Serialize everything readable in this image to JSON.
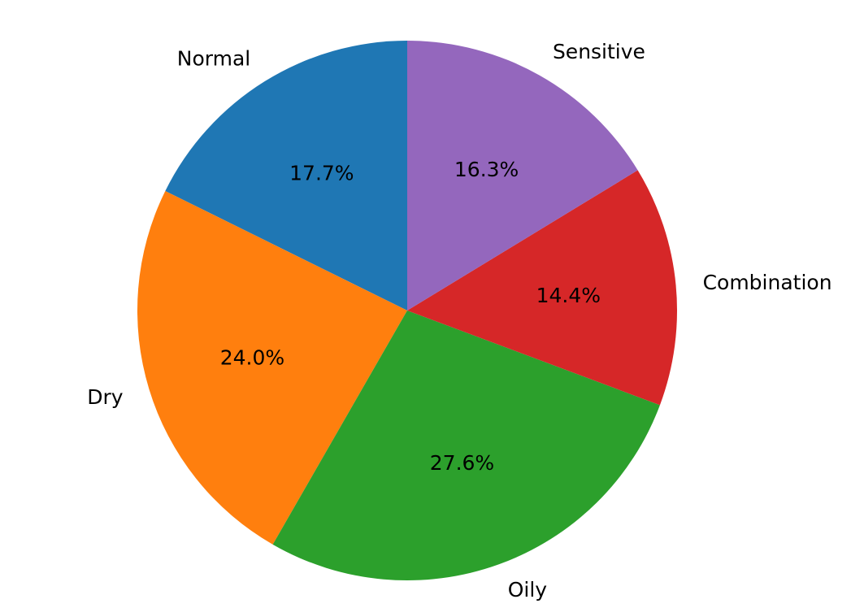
{
  "chart_data": {
    "type": "pie",
    "title": "",
    "categories": [
      "Normal",
      "Dry",
      "Oily",
      "Combination",
      "Sensitive"
    ],
    "values": [
      17.7,
      24.0,
      27.6,
      14.4,
      16.3
    ],
    "value_labels": [
      "17.7%",
      "24.0%",
      "27.6%",
      "14.4%",
      "16.3%"
    ],
    "colors": [
      "#1f77b4",
      "#ff7f0e",
      "#2ca02c",
      "#d62728",
      "#9467bd"
    ],
    "start_angle_deg": 90,
    "direction": "counterclockwise",
    "legend": "none"
  }
}
